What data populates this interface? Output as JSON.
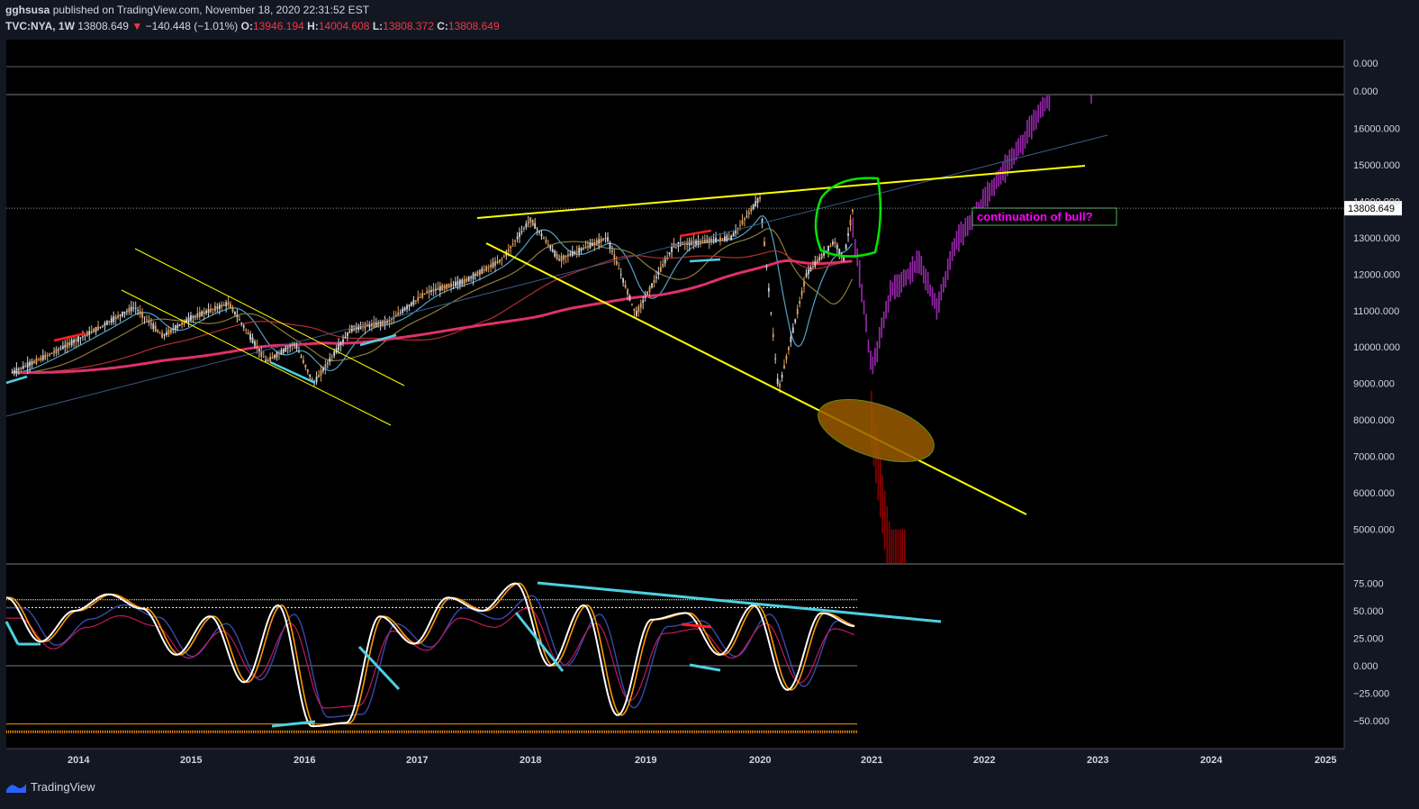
{
  "header": {
    "author": "gghsusa",
    "published_text": "published on TradingView.com, November 18, 2020 22:31:52 EST",
    "symbol": "TVC:NYA, 1W",
    "last": "13808.649",
    "change_arrow": "▼",
    "change": "−140.448 (−1.01%)",
    "open_label": "O:",
    "open": "13946.194",
    "high_label": "H:",
    "high": "14004.608",
    "low_label": "L:",
    "low": "13808.372",
    "close_label": "C:",
    "close": "13808.649"
  },
  "footer": {
    "brand": "TradingView",
    "logo_icon": "tradingview-logo-icon"
  },
  "colors": {
    "background": "#000000",
    "page": "#131722",
    "up_bar": "#d1d4dc",
    "down_bar": "#e0a060",
    "ma_fast": "#4fa3c9",
    "ma_mid": "#8b7d3a",
    "ma_slow": "#b03030",
    "ma_200": "#e0306a",
    "trend_yellow": "#ffff00",
    "projection": "#9c27b0",
    "crash_projection": "#8b0000",
    "oscillator_k": "#ffffff",
    "oscillator_d": "#ff9800",
    "oscillator_signal": "#3949ab",
    "divergence_line": "#4dd0e1",
    "annotation_magenta": "#ff00ff",
    "annotation_green": "#00e600",
    "target_zone": "#9a5c00"
  },
  "chart_data": [
    {
      "type": "candlestick",
      "title": "TVC:NYA, 1W",
      "x_ticks": [
        "2014",
        "2015",
        "2016",
        "2017",
        "2018",
        "2019",
        "2020",
        "2021",
        "2022",
        "2023",
        "2024",
        "2025"
      ],
      "y_ticks": [
        "16000.000",
        "15000.000",
        "14000.000",
        "13000.000",
        "12000.000",
        "11000.000",
        "10000.000",
        "9000.000",
        "8000.000",
        "7000.000",
        "6000.000",
        "5000.000"
      ],
      "top_pane_ticks": [
        "0.000",
        "0.000"
      ],
      "ylim": [
        4000,
        16900
      ],
      "last_price_label": "13808.649",
      "annotation": "continuation of bull?",
      "price_path": [
        [
          "2013-06",
          9300
        ],
        [
          "2013-10",
          9800
        ],
        [
          "2014-03",
          10500
        ],
        [
          "2014-07",
          11100
        ],
        [
          "2014-10",
          10300
        ],
        [
          "2015-01",
          10800
        ],
        [
          "2015-05",
          11200
        ],
        [
          "2015-09",
          9600
        ],
        [
          "2015-12",
          10100
        ],
        [
          "2016-02",
          9000
        ],
        [
          "2016-06",
          10500
        ],
        [
          "2016-10",
          10700
        ],
        [
          "2017-02",
          11500
        ],
        [
          "2017-06",
          11800
        ],
        [
          "2017-10",
          12400
        ],
        [
          "2018-01",
          13500
        ],
        [
          "2018-04",
          12400
        ],
        [
          "2018-09",
          13000
        ],
        [
          "2018-12",
          10900
        ],
        [
          "2019-04",
          12800
        ],
        [
          "2019-07",
          12900
        ],
        [
          "2019-10",
          13000
        ],
        [
          "2020-01",
          14100
        ],
        [
          "2020-03",
          8800
        ],
        [
          "2020-06",
          12000
        ],
        [
          "2020-09",
          12900
        ],
        [
          "2020-10",
          12400
        ],
        [
          "2020-11",
          13800
        ]
      ],
      "projection_path": [
        [
          "2020-11",
          13200
        ],
        [
          "2020-12",
          11500
        ],
        [
          "2021-01",
          9300
        ],
        [
          "2021-03",
          11500
        ],
        [
          "2021-06",
          12300
        ],
        [
          "2021-08",
          11100
        ],
        [
          "2021-10",
          12900
        ],
        [
          "2022-01",
          14000
        ],
        [
          "2022-05",
          15600
        ],
        [
          "2022-08",
          16900
        ]
      ],
      "crash_path": [
        [
          "2021-01",
          8000
        ],
        [
          "2021-02",
          6000
        ],
        [
          "2021-03",
          4200
        ]
      ]
    },
    {
      "type": "line",
      "title": "",
      "y_ticks": [
        "75.000",
        "50.000",
        "25.000",
        "0.000",
        "−25.000",
        "−50.000"
      ],
      "ylim": [
        -75,
        90
      ],
      "series": [
        {
          "values": [
            62,
            22,
            50,
            65,
            52,
            10,
            45,
            -15,
            55,
            -55,
            -52,
            45,
            20,
            62,
            50,
            75,
            0,
            55,
            -45,
            42,
            48,
            10,
            55,
            -22,
            48,
            36
          ]
        }
      ]
    }
  ]
}
